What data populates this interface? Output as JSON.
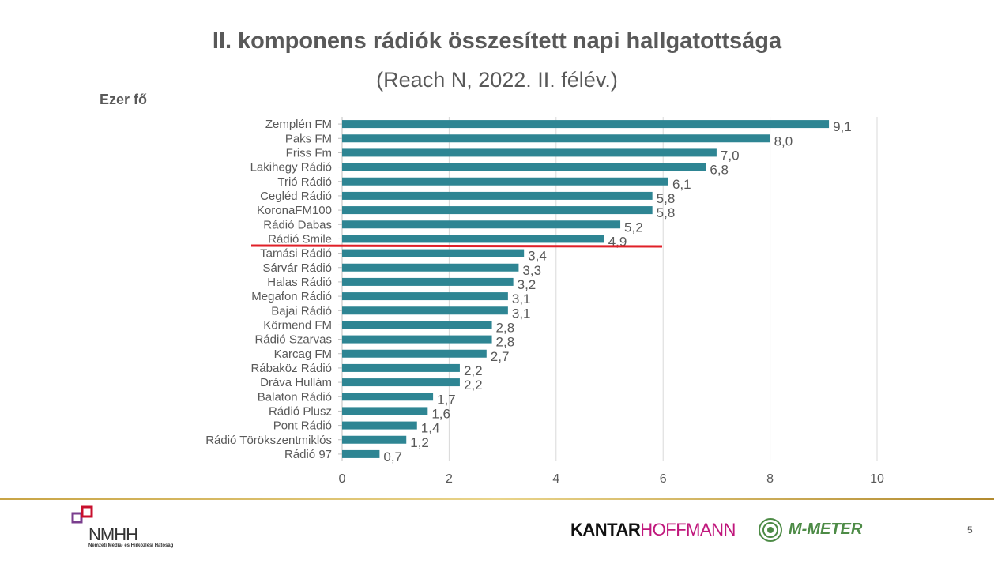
{
  "title": "II. komponens rádiók összesített napi hallgatottsága",
  "subtitle": "(Reach N, 2022. II. félév.)",
  "unit_label": "Ezer fő",
  "page_number": "5",
  "footer": {
    "nmhh_logo_text": "NMHH",
    "nmhh_subtitle": "Nemzeti Média- és Hírközlési Hatóság",
    "kantar_part1": "KANTAR",
    "kantar_part2": "HOFFMANN",
    "mmeter_text": "M-METER"
  },
  "colors": {
    "bar": "#2e8593",
    "highlight_line": "#e02028",
    "text": "#595959",
    "gridline": "#d9d9d9",
    "gold_rule": "#c8a445",
    "kantar_magenta": "#c0177c",
    "mmeter_green": "#4d8b46"
  },
  "chart_data": {
    "type": "bar",
    "orientation": "horizontal",
    "categories": [
      "Zemplén FM",
      "Paks FM",
      "Friss Fm",
      "Lakihegy Rádió",
      "Trió Rádió",
      "Cegléd Rádió",
      "KoronaFM100",
      "Rádió Dabas",
      "Rádió Smile",
      "Tamási Rádió",
      "Sárvár Rádió",
      "Halas Rádió",
      "Megafon Rádió",
      "Bajai Rádió",
      "Körmend FM",
      "Rádió Szarvas",
      "Karcag FM",
      "Rábaköz Rádió",
      "Dráva Hullám",
      "Balaton Rádió",
      "Rádió Plusz",
      "Pont Rádió",
      "Rádió Törökszentmiklós",
      "Rádió 97"
    ],
    "values": [
      9.1,
      8.0,
      7.0,
      6.8,
      6.1,
      5.8,
      5.8,
      5.2,
      4.9,
      3.4,
      3.3,
      3.2,
      3.1,
      3.1,
      2.8,
      2.8,
      2.7,
      2.2,
      2.2,
      1.7,
      1.6,
      1.4,
      1.2,
      0.7
    ],
    "value_labels": [
      "9,1",
      "8,0",
      "7,0",
      "6,8",
      "6,1",
      "5,8",
      "5,8",
      "5,2",
      "4,9",
      "3,4",
      "3,3",
      "3,2",
      "3,1",
      "3,1",
      "2,8",
      "2,8",
      "2,7",
      "2,2",
      "2,2",
      "1,7",
      "1,6",
      "1,4",
      "1,2",
      "0,7"
    ],
    "xlim": [
      0,
      10
    ],
    "x_ticks": [
      0,
      2,
      4,
      6,
      8,
      10
    ],
    "grid": "vertical",
    "highlight_after_category": "Rádió Smile"
  }
}
